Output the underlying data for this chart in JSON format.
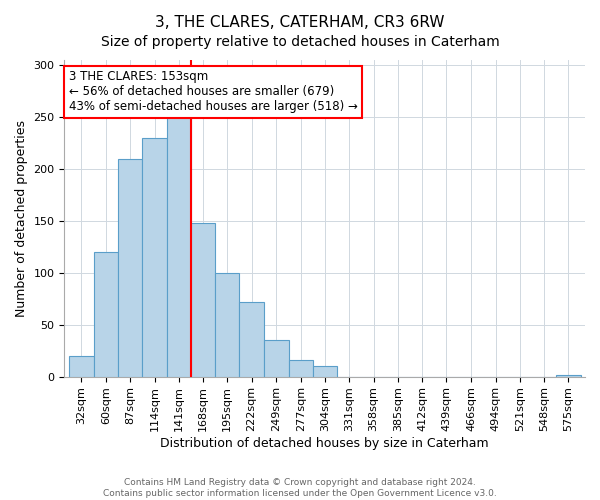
{
  "title": "3, THE CLARES, CATERHAM, CR3 6RW",
  "subtitle": "Size of property relative to detached houses in Caterham",
  "xlabel": "Distribution of detached houses by size in Caterham",
  "ylabel": "Number of detached properties",
  "bar_labels": [
    "32sqm",
    "60sqm",
    "87sqm",
    "114sqm",
    "141sqm",
    "168sqm",
    "195sqm",
    "222sqm",
    "249sqm",
    "277sqm",
    "304sqm",
    "331sqm",
    "358sqm",
    "385sqm",
    "412sqm",
    "439sqm",
    "466sqm",
    "494sqm",
    "521sqm",
    "548sqm",
    "575sqm"
  ],
  "bar_values": [
    20,
    120,
    210,
    230,
    250,
    148,
    100,
    72,
    35,
    16,
    10,
    0,
    0,
    0,
    0,
    0,
    0,
    0,
    0,
    0,
    2
  ],
  "bar_color": "#b8d4e8",
  "bar_edge_color": "#5a9ec9",
  "property_line_color": "red",
  "annotation_line1": "3 THE CLARES: 153sqm",
  "annotation_line2": "← 56% of detached houses are smaller (679)",
  "annotation_line3": "43% of semi-detached houses are larger (518) →",
  "annotation_box_color": "white",
  "annotation_box_edge_color": "red",
  "ylim": [
    0,
    305
  ],
  "yticks": [
    0,
    50,
    100,
    150,
    200,
    250,
    300
  ],
  "footer_line1": "Contains HM Land Registry data © Crown copyright and database right 2024.",
  "footer_line2": "Contains public sector information licensed under the Open Government Licence v3.0.",
  "bin_edges": [
    32,
    60,
    87,
    114,
    141,
    168,
    195,
    222,
    249,
    277,
    304,
    331,
    358,
    385,
    412,
    439,
    466,
    494,
    521,
    548,
    575,
    602
  ],
  "title_fontsize": 11,
  "subtitle_fontsize": 10,
  "annotation_fontsize": 8.5,
  "ylabel_fontsize": 9,
  "xlabel_fontsize": 9,
  "tick_fontsize": 8,
  "footer_fontsize": 6.5
}
